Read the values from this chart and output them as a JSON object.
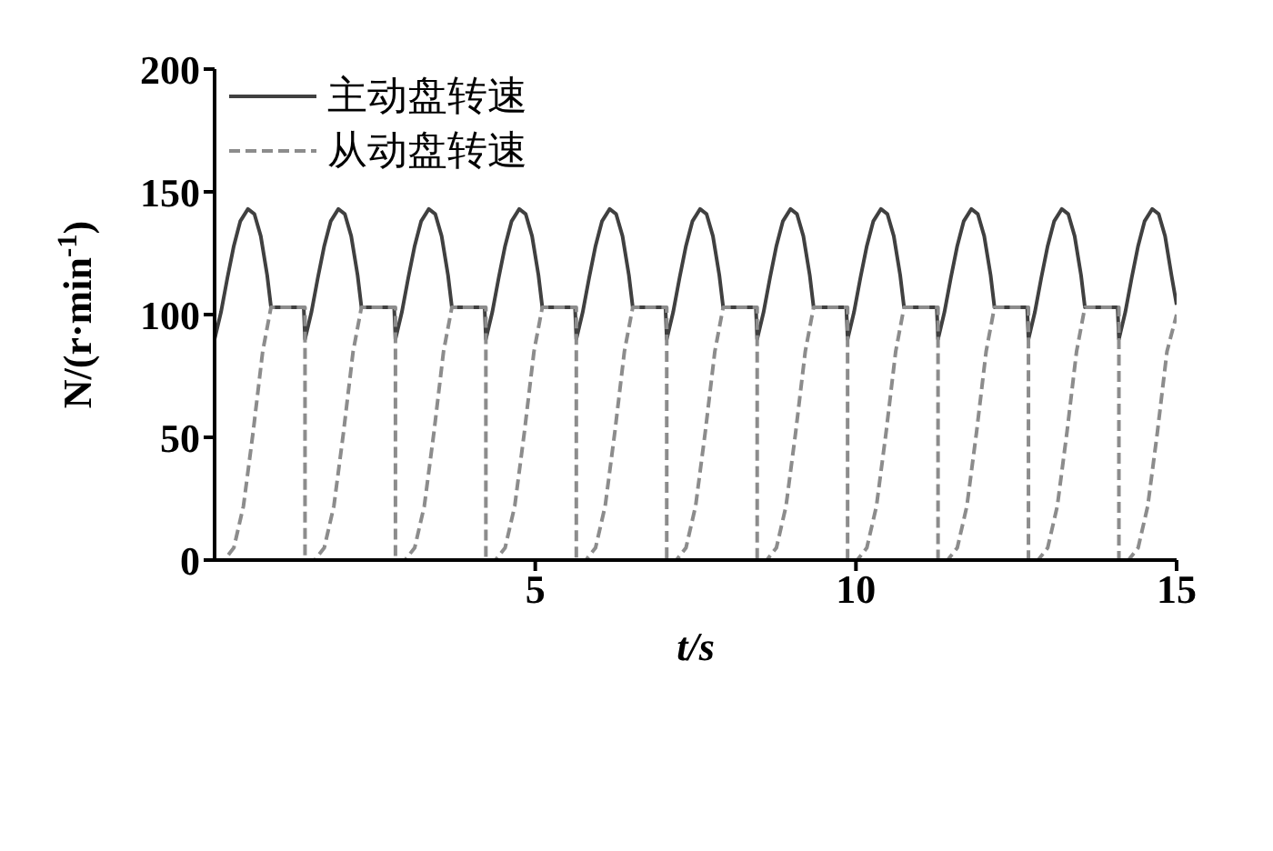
{
  "chart_data": {
    "type": "line",
    "xlabel": "t/s",
    "ylabel": "N/(r·min$^{-1}$)",
    "xlim": [
      0,
      15
    ],
    "xticks": [
      5,
      10,
      15
    ],
    "ylim": [
      0,
      200
    ],
    "yticks": [
      0,
      50,
      100,
      150,
      200
    ],
    "grid": false,
    "legend": "top left",
    "marker": "none",
    "series": [
      {
        "name": "主动盘转速",
        "color": "#404040",
        "line_style": "solid",
        "x": [
          0,
          0.1,
          0.2,
          0.3,
          0.4,
          0.52,
          0.62,
          0.72,
          0.82,
          0.88,
          1.39,
          1.41,
          1.51,
          1.61,
          1.71,
          1.81,
          1.93,
          2.03,
          2.13,
          2.23,
          2.29,
          2.8,
          2.82,
          2.92,
          3.02,
          3.12,
          3.22,
          3.34,
          3.44,
          3.54,
          3.64,
          3.7,
          4.21,
          4.23,
          4.33,
          4.43,
          4.53,
          4.63,
          4.75,
          4.85,
          4.95,
          5.05,
          5.11,
          5.62,
          5.64,
          5.74,
          5.84,
          5.94,
          6.04,
          6.16,
          6.26,
          6.36,
          6.46,
          6.52,
          7.03,
          7.05,
          7.15,
          7.25,
          7.35,
          7.45,
          7.57,
          7.67,
          7.77,
          7.87,
          7.93,
          8.44,
          8.46,
          8.56,
          8.66,
          8.76,
          8.86,
          8.98,
          9.08,
          9.18,
          9.28,
          9.34,
          9.85,
          9.87,
          9.97,
          10.07,
          10.17,
          10.27,
          10.39,
          10.49,
          10.59,
          10.69,
          10.75,
          11.26,
          11.28,
          11.38,
          11.48,
          11.58,
          11.68,
          11.8,
          11.9,
          12,
          12.1,
          12.16,
          12.67,
          12.69,
          12.79,
          12.89,
          12.99,
          13.09,
          13.21,
          13.31,
          13.41,
          13.51,
          13.57,
          14.08,
          14.1,
          14.2,
          14.3,
          14.4,
          14.5,
          14.62,
          14.72,
          14.82,
          14.92,
          15
        ],
        "values": [
          90,
          101,
          115,
          128,
          138,
          143,
          141,
          132,
          116,
          103,
          103,
          90,
          101,
          115,
          128,
          138,
          143,
          141,
          132,
          116,
          103,
          103,
          90,
          101,
          115,
          128,
          138,
          143,
          141,
          132,
          116,
          103,
          103,
          90,
          101,
          115,
          128,
          138,
          143,
          141,
          132,
          116,
          103,
          103,
          90,
          101,
          115,
          128,
          138,
          143,
          141,
          132,
          116,
          103,
          103,
          90,
          101,
          115,
          128,
          138,
          143,
          141,
          132,
          116,
          103,
          103,
          90,
          101,
          115,
          128,
          138,
          143,
          141,
          132,
          116,
          103,
          103,
          90,
          101,
          115,
          128,
          138,
          143,
          141,
          132,
          116,
          103,
          103,
          90,
          101,
          115,
          128,
          138,
          143,
          141,
          132,
          116,
          103,
          103,
          90,
          101,
          115,
          128,
          138,
          143,
          141,
          132,
          116,
          103,
          103,
          90,
          101,
          115,
          128,
          138,
          143,
          141,
          132,
          116,
          104
        ]
      },
      {
        "name": "从动盘转速",
        "color": "#8c8c8c",
        "line_style": "dashed",
        "x": [
          0,
          0.15,
          0.3,
          0.45,
          0.6,
          0.75,
          0.88,
          1.41,
          1.41,
          1.56,
          1.71,
          1.86,
          2.01,
          2.16,
          2.29,
          2.82,
          2.82,
          2.97,
          3.12,
          3.27,
          3.42,
          3.57,
          3.7,
          4.23,
          4.23,
          4.38,
          4.53,
          4.68,
          4.83,
          4.98,
          5.11,
          5.64,
          5.64,
          5.79,
          5.94,
          6.09,
          6.24,
          6.39,
          6.52,
          7.05,
          7.05,
          7.2,
          7.35,
          7.5,
          7.65,
          7.8,
          7.93,
          8.46,
          8.46,
          8.61,
          8.76,
          8.91,
          9.06,
          9.21,
          9.34,
          9.87,
          9.87,
          10.02,
          10.17,
          10.32,
          10.47,
          10.62,
          10.75,
          11.28,
          11.28,
          11.43,
          11.58,
          11.73,
          11.88,
          12.03,
          12.16,
          12.69,
          12.69,
          12.84,
          12.99,
          13.14,
          13.29,
          13.44,
          13.57,
          14.1,
          14.1,
          14.25,
          14.4,
          14.55,
          14.7,
          14.85,
          15
        ],
        "values": [
          0,
          0,
          5,
          22,
          52,
          85,
          103,
          103,
          0,
          0,
          5,
          22,
          52,
          85,
          103,
          103,
          0,
          0,
          5,
          22,
          52,
          85,
          103,
          103,
          0,
          0,
          5,
          22,
          52,
          85,
          103,
          103,
          0,
          0,
          5,
          22,
          52,
          85,
          103,
          103,
          0,
          0,
          5,
          22,
          52,
          85,
          103,
          103,
          0,
          0,
          5,
          22,
          52,
          85,
          103,
          103,
          0,
          0,
          5,
          22,
          52,
          85,
          103,
          103,
          0,
          0,
          5,
          22,
          52,
          85,
          103,
          103,
          0,
          0,
          5,
          22,
          52,
          85,
          103,
          103,
          0,
          0,
          5,
          22,
          52,
          85,
          100
        ]
      }
    ]
  }
}
